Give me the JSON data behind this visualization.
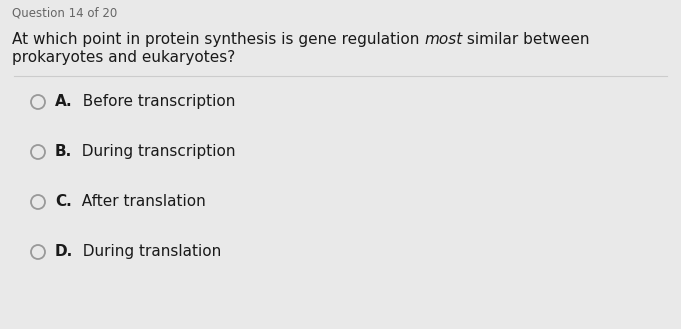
{
  "header": "Question 14 of 20",
  "question_part1": "At which point in protein synthesis is gene regulation ",
  "question_italic": "most",
  "question_part2": " similar between",
  "question_line2": "prokaryotes and eukaryotes?",
  "options": [
    {
      "letter": "A.",
      "text": "  Before transcription"
    },
    {
      "letter": "B.",
      "text": "  During transcription"
    },
    {
      "letter": "C.",
      "text": "  After translation"
    },
    {
      "letter": "D.",
      "text": "  During translation"
    }
  ],
  "bg_color": "#e9e9e9",
  "header_color": "#666666",
  "question_color": "#1a1a1a",
  "option_color": "#1a1a1a",
  "circle_edge_color": "#999999",
  "divider_color": "#cccccc",
  "header_fontsize": 8.5,
  "question_fontsize": 11.0,
  "option_fontsize": 11.0
}
